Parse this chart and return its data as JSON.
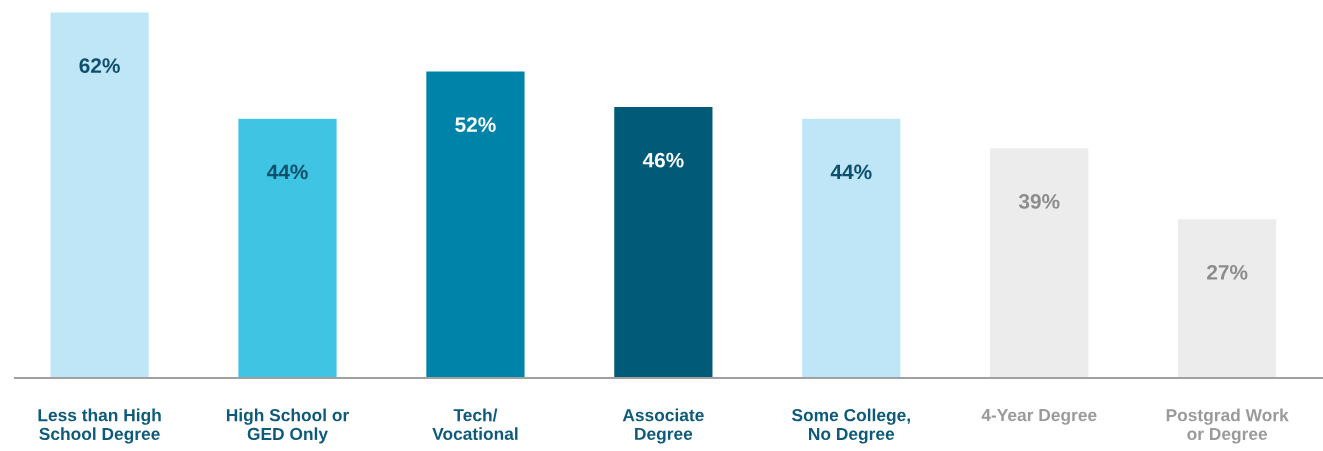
{
  "chart_data": {
    "type": "bar",
    "categories": [
      "Less than High\nSchool Degree",
      "High School or\nGED Only",
      "Tech/\nVocational",
      "Associate\nDegree",
      "Some College,\nNo Degree",
      "4-Year Degree",
      "Postgrad Work\nor Degree"
    ],
    "values": [
      62,
      44,
      52,
      46,
      44,
      39,
      27
    ],
    "value_labels": [
      "62%",
      "44%",
      "52%",
      "46%",
      "44%",
      "39%",
      "27%"
    ],
    "colors": [
      "#bee6f7",
      "#40c4e4",
      "#0083a9",
      "#005a78",
      "#bee6f7",
      "#ececec",
      "#ececec"
    ],
    "grid": false,
    "legend": false
  }
}
